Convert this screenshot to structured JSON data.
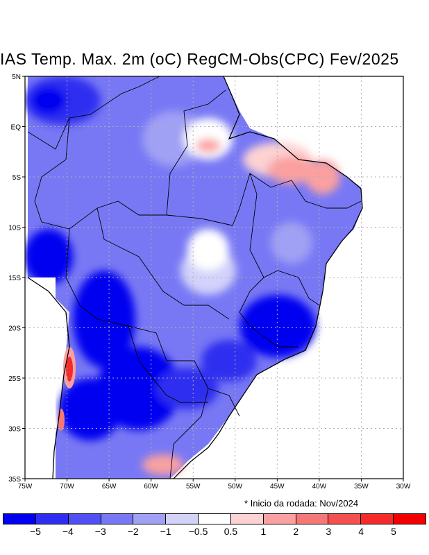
{
  "title": "IAS Temp. Max. 2m (oC) RegCM-Obs(CPC) Fev/2025",
  "note": "* Inicio da rodada: Nov/2024",
  "lat_labels": [
    "5N",
    "EQ",
    "5S",
    "10S",
    "15S",
    "20S",
    "25S",
    "30S",
    "35S"
  ],
  "lon_labels": [
    "75W",
    "70W",
    "65W",
    "60W",
    "55W",
    "50W",
    "45W",
    "40W",
    "35W",
    "30W"
  ],
  "colorbar": {
    "colors": [
      "#0000f0",
      "#2e2ef0",
      "#5050f5",
      "#7878f5",
      "#a0a0f5",
      "#d2d2fa",
      "#ffffff",
      "#fcd2d2",
      "#faa0a0",
      "#f57878",
      "#f55050",
      "#f52a2a",
      "#f50000"
    ],
    "labels": [
      "−5",
      "−4",
      "−3",
      "−2",
      "−1",
      "−0.5",
      "0.5",
      "1",
      "2",
      "3",
      "4",
      "5"
    ]
  }
}
